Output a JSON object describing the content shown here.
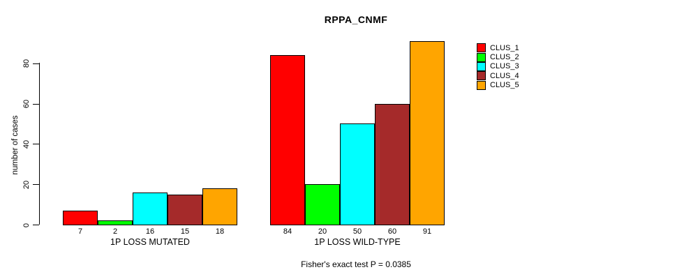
{
  "chart_data": {
    "type": "bar",
    "title": "RPPA_CNMF",
    "ylabel": "number of cases",
    "xlabel": "",
    "annotation": "Fisher's exact test P = 0.0385",
    "categories": [
      "1P LOSS MUTATED",
      "1P LOSS WILD-TYPE"
    ],
    "series": [
      {
        "name": "CLUS_1",
        "color": "#FF0000",
        "values": [
          7,
          84
        ]
      },
      {
        "name": "CLUS_2",
        "color": "#00FF00",
        "values": [
          2,
          20
        ]
      },
      {
        "name": "CLUS_3",
        "color": "#00FFFF",
        "values": [
          16,
          50
        ]
      },
      {
        "name": "CLUS_4",
        "color": "#A52A2A",
        "values": [
          15,
          60
        ]
      },
      {
        "name": "CLUS_5",
        "color": "#FFA500",
        "values": [
          18,
          91
        ]
      }
    ],
    "yticks": [
      0,
      20,
      40,
      60,
      80
    ],
    "ylim": [
      0,
      92
    ],
    "grid": false,
    "bar_value_labels": true,
    "legend_position": "right",
    "background": "#ffffff",
    "bar_border_color": "#000000"
  }
}
